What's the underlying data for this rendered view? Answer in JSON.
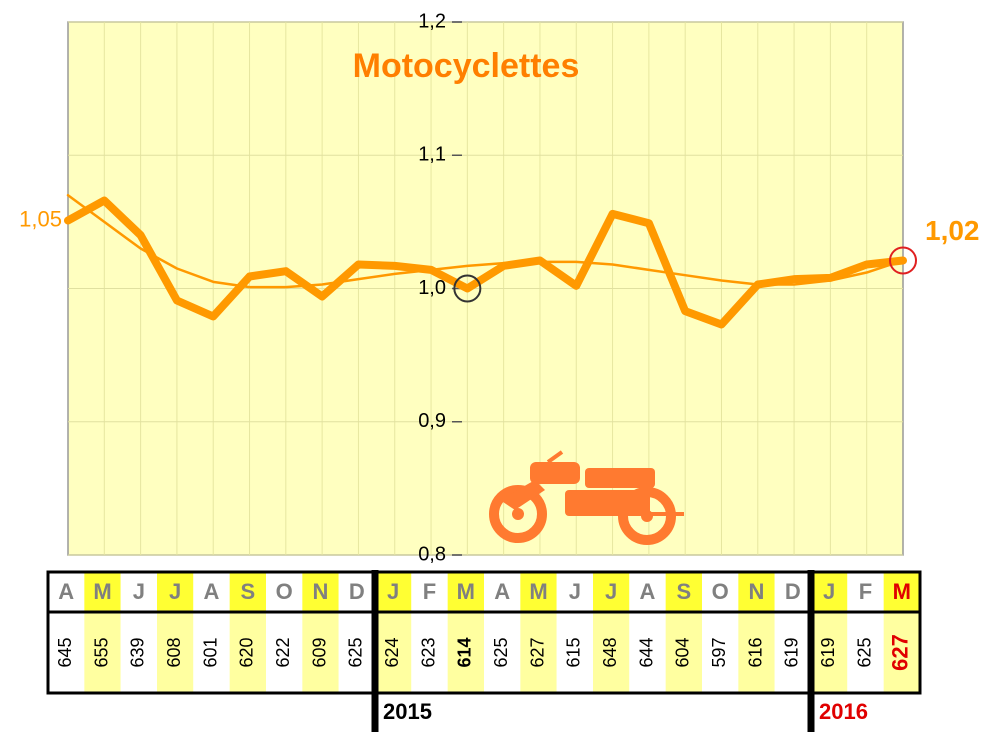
{
  "chart_data": {
    "type": "line",
    "title": "Motocyclettes",
    "categories": [
      "A",
      "M",
      "J",
      "J",
      "A",
      "S",
      "O",
      "N",
      "D",
      "J",
      "F",
      "M",
      "A",
      "M",
      "J",
      "J",
      "A",
      "S",
      "O",
      "N",
      "D",
      "J",
      "F",
      "M"
    ],
    "series": [
      {
        "color": "#ff9900",
        "values": [
          1.051,
          1.066,
          1.04,
          0.991,
          0.979,
          1.009,
          1.013,
          0.994,
          1.018,
          1.017,
          1.014,
          1.0,
          1.017,
          1.021,
          1.002,
          1.056,
          1.049,
          0.983,
          0.973,
          1.003,
          1.007,
          1.008,
          1.018,
          1.021
        ],
        "value_labels": [
          "1,05",
          null,
          null,
          null,
          null,
          null,
          null,
          null,
          null,
          null,
          null,
          null,
          null,
          null,
          null,
          null,
          null,
          null,
          null,
          null,
          null,
          null,
          null,
          "1,02"
        ]
      },
      {
        "color": "#ff9900",
        "values": [
          1.07,
          1.05,
          1.03,
          1.015,
          1.005,
          1.001,
          1.001,
          1.003,
          1.007,
          1.011,
          1.014,
          1.017,
          1.019,
          1.02,
          1.02,
          1.018,
          1.014,
          1.01,
          1.006,
          1.003,
          1.003,
          1.006,
          1.012,
          1.021
        ]
      }
    ],
    "ylim": [
      0.8,
      1.2
    ],
    "yticks": [
      {
        "value": 0.8,
        "label": "0,8"
      },
      {
        "value": 0.9,
        "label": "0,9"
      },
      {
        "value": 1.0,
        "label": "1,0"
      },
      {
        "value": 1.1,
        "label": "1,1"
      },
      {
        "value": 1.2,
        "label": "1,2"
      }
    ],
    "grid": true
  },
  "table": {
    "counts": [
      645,
      655,
      639,
      608,
      601,
      620,
      622,
      609,
      625,
      624,
      623,
      614,
      625,
      627,
      615,
      648,
      644,
      604,
      597,
      616,
      619,
      619,
      625,
      627
    ],
    "years": [
      "2015",
      "2016"
    ]
  }
}
